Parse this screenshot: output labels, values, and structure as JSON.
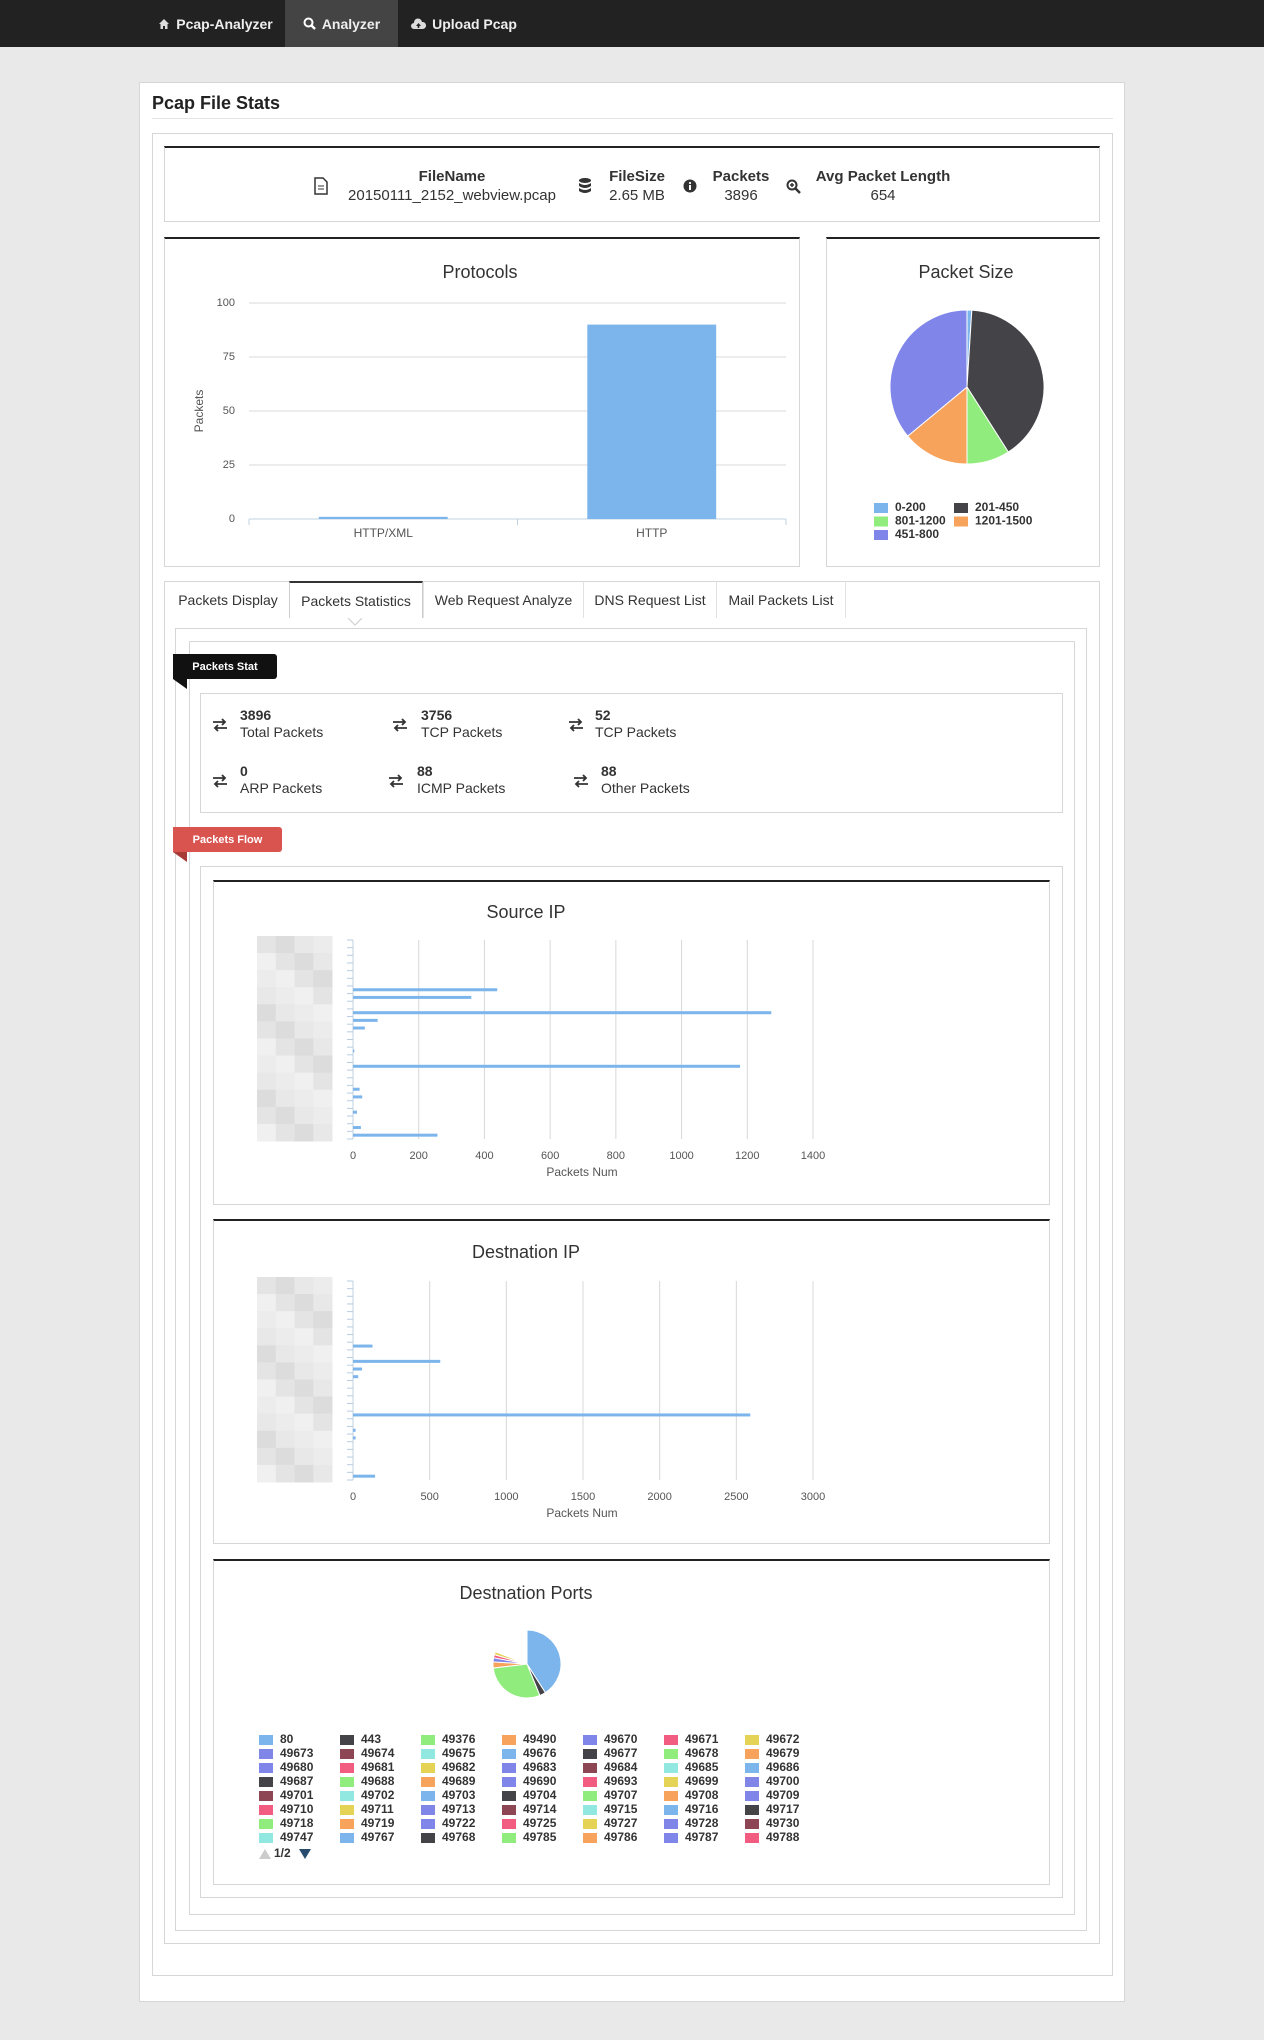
{
  "nav": [
    "Pcap-Analyzer",
    "Analyzer",
    "Upload Pcap"
  ],
  "panel_title": "Pcap File Stats",
  "file_info": [
    {
      "label": "FileName",
      "value": "20150111_2152_webview.pcap"
    },
    {
      "label": "FileSize",
      "value": "2.65 MB"
    },
    {
      "label": "Packets",
      "value": 3896
    },
    {
      "label": "Avg Packet Length",
      "value": 654
    }
  ],
  "tabs": [
    "Packets Display",
    "Packets Statistics",
    "Web Request Analyze",
    "DNS Request List",
    "Mail Packets List"
  ],
  "sections": {
    "stat": "Packets Stat",
    "flow": "Packets Flow"
  },
  "packet_stats": [
    {
      "value": 3896,
      "label": "Total Packets"
    },
    {
      "value": 3756,
      "label": "TCP Packets"
    },
    {
      "value": 52,
      "label": "TCP Packets"
    },
    {
      "value": 0,
      "label": "ARP Packets"
    },
    {
      "value": 88,
      "label": "ICMP Packets"
    },
    {
      "value": 88,
      "label": "Other Packets"
    }
  ],
  "chart_data": [
    {
      "type": "bar",
      "title": "Protocols",
      "y_label": "Packets",
      "categories": [
        "HTTP/XML",
        "HTTP"
      ],
      "values": [
        1,
        90
      ],
      "color": "#7cb5ec",
      "ylim": [
        0,
        100
      ],
      "yticks": [
        0,
        25,
        50,
        75,
        100
      ],
      "grid": true
    },
    {
      "type": "pie",
      "title": "Packet Size",
      "categories": [
        "0-200",
        "201-450",
        "801-1200",
        "1201-1500",
        "451-800"
      ],
      "values": [
        1,
        40,
        9,
        14,
        36
      ],
      "colors": [
        "#7cb5ec",
        "#434348",
        "#90ed7d",
        "#f7a35c",
        "#8085e9"
      ]
    },
    {
      "type": "bar",
      "orientation": "horizontal",
      "title": "Source IP",
      "x_label": "Packets Num",
      "categories": [
        null,
        null,
        null,
        null,
        null,
        null,
        null,
        null,
        null,
        null,
        null,
        null,
        null,
        null,
        null,
        null,
        null,
        null,
        null,
        null,
        null,
        null,
        null,
        null,
        null,
        null
      ],
      "values": [
        0,
        0,
        0,
        0,
        0,
        0,
        439,
        360,
        0,
        1273,
        75,
        36,
        0,
        0,
        4,
        0,
        1178,
        0,
        0,
        20,
        28,
        0,
        12,
        0,
        24,
        257
      ],
      "color": "#7cb5ec",
      "xlim": [
        0,
        1400
      ],
      "xticks": [
        0,
        200,
        400,
        600,
        800,
        1000,
        1200,
        1400
      ],
      "grid": true
    },
    {
      "type": "bar",
      "orientation": "horizontal",
      "title": "Destnation IP",
      "x_label": "Packets Num",
      "categories": [
        null,
        null,
        null,
        null,
        null,
        null,
        null,
        null,
        null,
        null,
        null,
        null,
        null,
        null,
        null,
        null,
        null,
        null,
        null,
        null,
        null,
        null,
        null,
        null,
        null,
        null
      ],
      "values": [
        0,
        0,
        0,
        0,
        0,
        0,
        0,
        0,
        127,
        0,
        569,
        59,
        34,
        0,
        0,
        0,
        0,
        2591,
        0,
        17,
        17,
        0,
        0,
        0,
        0,
        144
      ],
      "color": "#7cb5ec",
      "xlim": [
        0,
        3000
      ],
      "xticks": [
        0,
        500,
        1000,
        1500,
        2000,
        2500,
        3000
      ],
      "grid": true
    },
    {
      "type": "pie",
      "title": "Destnation Ports",
      "legend_page": "1/2",
      "categories": [
        "80",
        "443",
        "49376",
        "49490",
        "49670",
        "49671",
        "49672",
        "49673",
        "49674",
        "49675",
        "49676",
        "49677",
        "49678",
        "49679",
        "49680",
        "49681",
        "49682",
        "49683",
        "49684",
        "49685",
        "49686",
        "49687",
        "49688",
        "49689",
        "49690",
        "49693",
        "49699",
        "49700",
        "49701",
        "49702",
        "49703",
        "49704",
        "49707",
        "49708",
        "49709",
        "49710",
        "49711",
        "49713",
        "49714",
        "49715",
        "49716",
        "49717",
        "49718",
        "49719",
        "49722",
        "49725",
        "49727",
        "49728",
        "49730",
        "49747",
        "49767",
        "49768",
        "49785",
        "49786",
        "49787",
        "49788"
      ],
      "values": [
        42,
        3,
        30,
        3,
        2,
        1.5,
        1.5,
        0.4,
        0.4,
        0.4,
        0.4,
        0.4,
        0.4,
        0.4,
        0.4,
        0.4,
        0.4,
        0.4,
        0.4,
        0.4,
        0.4,
        0.4,
        0.4,
        0.4,
        0.4,
        0.4,
        0.4,
        0.4,
        0.4,
        0.4,
        0.4,
        0.4,
        0.4,
        0.4,
        0.4,
        0.4,
        0.4,
        0.4,
        0.4,
        0.4,
        0.4,
        0.4,
        0.4,
        0.4,
        0.4,
        0.4,
        0.4,
        0.4,
        0.4,
        0.4,
        0.4,
        0.4,
        0.4,
        0.4,
        0.4,
        0.4
      ],
      "colors": [
        "#7cb5ec",
        "#434348",
        "#90ed7d",
        "#f7a35c",
        "#8085e9",
        "#f15c80",
        "#e4d354",
        "#8085e8",
        "#8d4653",
        "#91e8e1"
      ]
    }
  ]
}
